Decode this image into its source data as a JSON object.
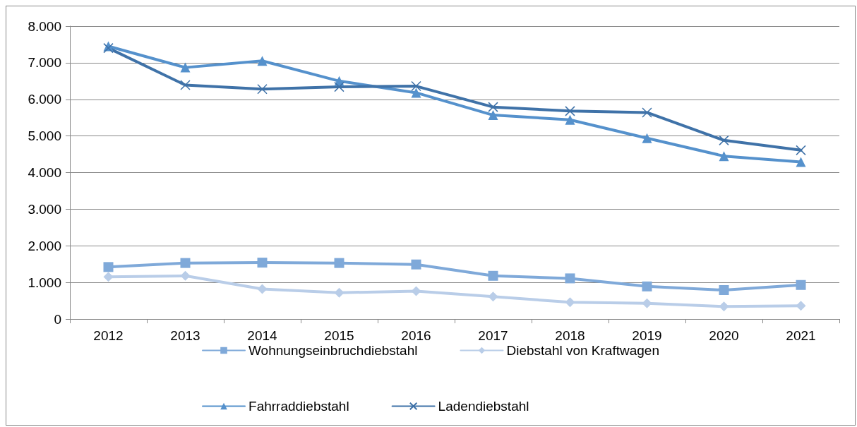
{
  "chart_data": {
    "type": "line",
    "categories": [
      "2012",
      "2013",
      "2014",
      "2015",
      "2016",
      "2017",
      "2018",
      "2019",
      "2020",
      "2021"
    ],
    "ylim": [
      0,
      8000
    ],
    "yticks": [
      {
        "value": 0,
        "label": "0"
      },
      {
        "value": 1000,
        "label": "1.000"
      },
      {
        "value": 2000,
        "label": "2.000"
      },
      {
        "value": 3000,
        "label": "3.000"
      },
      {
        "value": 4000,
        "label": "4.000"
      },
      {
        "value": 5000,
        "label": "5.000"
      },
      {
        "value": 6000,
        "label": "6.000"
      },
      {
        "value": 7000,
        "label": "7.000"
      },
      {
        "value": 8000,
        "label": "8.000"
      }
    ],
    "grid": "y",
    "legend": "bottom",
    "series": [
      {
        "name": "Wohnungseinbruchdiebstahl",
        "color": "#7fa9d9",
        "marker": "square",
        "values": [
          1420,
          1530,
          1540,
          1530,
          1490,
          1180,
          1110,
          890,
          790,
          930
        ]
      },
      {
        "name": "Diebstahl von Kraftwagen",
        "color": "#b9cde8",
        "marker": "diamond",
        "values": [
          1150,
          1180,
          820,
          720,
          760,
          610,
          460,
          430,
          340,
          360
        ]
      },
      {
        "name": "Fahrraddiebstahl",
        "color": "#5591cc",
        "marker": "triangle",
        "values": [
          7450,
          6870,
          7050,
          6500,
          6180,
          5570,
          5440,
          4940,
          4450,
          4290
        ]
      },
      {
        "name": "Ladendiebstahl",
        "color": "#3f72a8",
        "marker": "cross",
        "values": [
          7400,
          6390,
          6280,
          6340,
          6360,
          5790,
          5680,
          5640,
          4880,
          4610
        ]
      }
    ]
  }
}
